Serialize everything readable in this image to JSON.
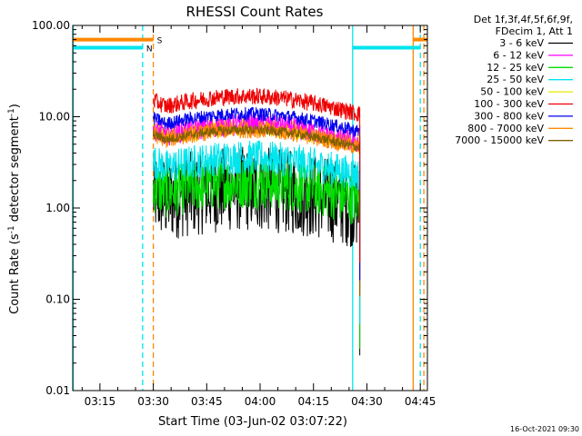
{
  "chart_data": {
    "type": "line",
    "title": "RHESSI Count Rates",
    "ylabel_prefix": "Count Rate (s",
    "ylabel_sup": "-1",
    "ylabel_suffix": " detector segment",
    "ylabel_suffix_sup": "-1",
    "ylabel_close": ")",
    "xlabel": "Start Time (03-Jun-02 03:07:22)",
    "y_scale": "log",
    "ylim": [
      0.01,
      100
    ],
    "xlim": [
      "03:07:22",
      "04:47:00"
    ],
    "y_ticks": [
      {
        "v": 0.01,
        "label": "0.01"
      },
      {
        "v": 0.1,
        "label": "0.10"
      },
      {
        "v": 1,
        "label": "1.00"
      },
      {
        "v": 10,
        "label": "10.00"
      },
      {
        "v": 100,
        "label": "100.00"
      }
    ],
    "x_ticks": [
      {
        "t": "03:15",
        "label": "03:15"
      },
      {
        "t": "03:30",
        "label": "03:30"
      },
      {
        "t": "03:45",
        "label": "03:45"
      },
      {
        "t": "04:00",
        "label": "04:00"
      },
      {
        "t": "04:15",
        "label": "04:15"
      },
      {
        "t": "04:30",
        "label": "04:30"
      },
      {
        "t": "04:45",
        "label": "04:45"
      }
    ],
    "legend_header": [
      "Det 1f,3f,4f,5f,6f,9f,",
      "FDecim 1, Att 1"
    ],
    "legend_position": "right",
    "series": [
      {
        "name": "3 - 6 keV",
        "color": "#000000",
        "level": 1.35,
        "noise": 0.45
      },
      {
        "name": "6 - 12 keV",
        "color": "#ff00ff",
        "level": 6.8,
        "noise": 0.12
      },
      {
        "name": "12 - 25 keV",
        "color": "#00e000",
        "level": 1.6,
        "noise": 0.28
      },
      {
        "name": "25 - 50 keV",
        "color": "#00e5ee",
        "level": 3.0,
        "noise": 0.18
      },
      {
        "name": "50 - 100 keV",
        "color": "#e8e800",
        "level": 6.5,
        "noise": 0.1
      },
      {
        "name": "100 - 300 keV",
        "color": "#ee0000",
        "level": 14.0,
        "noise": 0.09
      },
      {
        "name": "300 - 800 keV",
        "color": "#0000ee",
        "level": 9.0,
        "noise": 0.07
      },
      {
        "name": "800 - 7000 keV",
        "color": "#ff8800",
        "level": 6.0,
        "noise": 0.09
      },
      {
        "name": "7000 - 15000 keV",
        "color": "#806000",
        "level": 6.0,
        "noise": 0.05
      }
    ],
    "data_span": [
      "03:30",
      "04:28"
    ],
    "flags": [
      {
        "label": "S",
        "color": "#ff8800",
        "value": 70,
        "segments": [
          [
            "03:07:22",
            "03:30"
          ],
          [
            "04:43",
            "04:47"
          ]
        ]
      },
      {
        "label": "N",
        "color": "#00e5ee",
        "value": 57,
        "segments": [
          [
            "03:07:22",
            "03:27"
          ],
          [
            "04:26",
            "04:45"
          ]
        ]
      }
    ],
    "markers": [
      {
        "t": "03:07:30",
        "color": "#00e5ee",
        "style": "solid"
      },
      {
        "t": "03:27",
        "color": "#00e5ee",
        "style": "dashed"
      },
      {
        "t": "03:30",
        "color": "#ff8800",
        "style": "dashed"
      },
      {
        "t": "04:26",
        "color": "#00e5ee",
        "style": "solid"
      },
      {
        "t": "04:43",
        "color": "#ff8800",
        "style": "solid"
      },
      {
        "t": "04:45",
        "color": "#00e5ee",
        "style": "dashed"
      },
      {
        "t": "04:46",
        "color": "#ff8800",
        "style": "dashed"
      }
    ],
    "grid": false
  },
  "footer": {
    "timestamp": "16-Oct-2021 09:30"
  }
}
